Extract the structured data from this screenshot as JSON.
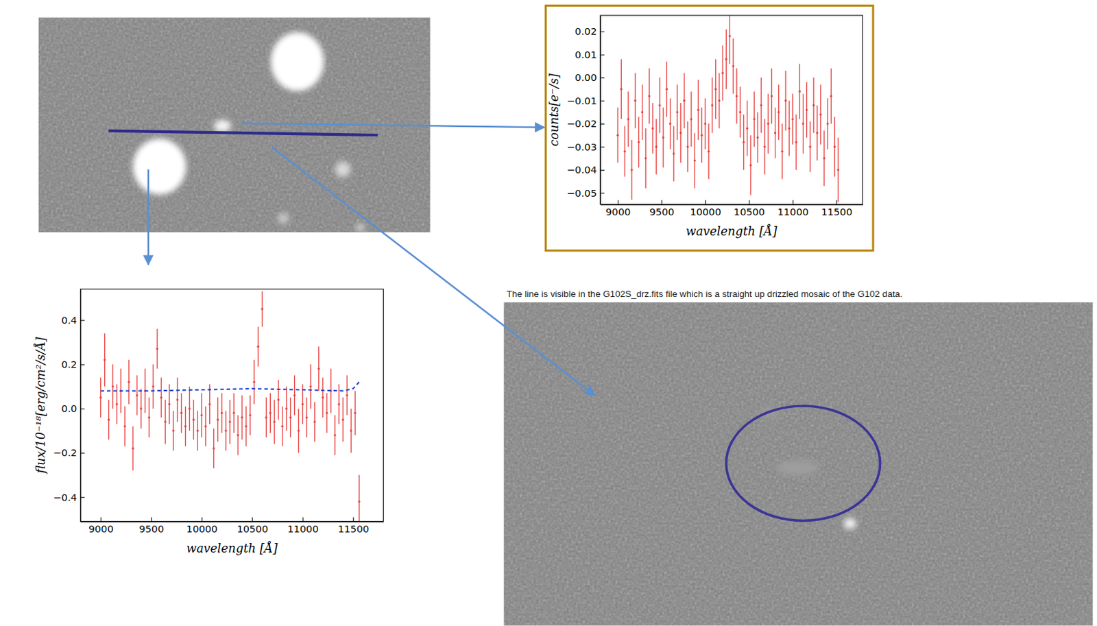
{
  "chart_data": [
    {
      "type": "scatter",
      "x_label": "wavelength [Å]",
      "y_label": "counts[e⁻/s]",
      "xlim": [
        8800,
        11800
      ],
      "ylim": [
        -0.055,
        0.027
      ],
      "xticks": [
        9000,
        9500,
        10000,
        10500,
        11000,
        11500
      ],
      "yticks": [
        0.02,
        0.01,
        {
          "value": 0,
          "label": "0.00"
        },
        {
          "value": -0.01,
          "label": "−0.01"
        },
        {
          "value": -0.02,
          "label": "−0.02"
        },
        {
          "value": -0.03,
          "label": "−0.03"
        },
        {
          "value": -0.04,
          "label": "−0.04"
        },
        {
          "value": -0.05,
          "label": "−0.05"
        }
      ],
      "grid": false,
      "series": [
        {
          "type": "scatter",
          "color": "#e8413f",
          "marker": "point",
          "x": [
            9000,
            9040,
            9080,
            9120,
            9160,
            9200,
            9240,
            9280,
            9320,
            9360,
            9400,
            9440,
            9480,
            9520,
            9560,
            9600,
            9640,
            9680,
            9720,
            9760,
            9800,
            9840,
            9880,
            9920,
            9960,
            10000,
            10040,
            10080,
            10120,
            10160,
            10200,
            10240,
            10280,
            10320,
            10360,
            10400,
            10440,
            10480,
            10520,
            10560,
            10600,
            10640,
            10680,
            10720,
            10760,
            10800,
            10840,
            10880,
            10920,
            10960,
            11000,
            11040,
            11080,
            11120,
            11160,
            11200,
            11240,
            11280,
            11320,
            11360,
            11400,
            11440,
            11480,
            11520
          ],
          "values": [
            -0.025,
            -0.005,
            -0.032,
            -0.018,
            -0.04,
            -0.01,
            -0.028,
            -0.015,
            -0.035,
            -0.008,
            -0.022,
            -0.03,
            -0.012,
            -0.026,
            -0.005,
            -0.02,
            -0.033,
            -0.015,
            -0.024,
            -0.01,
            -0.03,
            -0.018,
            -0.036,
            -0.014,
            -0.025,
            -0.02,
            -0.032,
            -0.012,
            -0.005,
            -0.01,
            0.002,
            0.008,
            0.018,
            0.005,
            -0.008,
            -0.015,
            -0.028,
            -0.022,
            -0.038,
            -0.018,
            -0.026,
            -0.012,
            -0.03,
            -0.02,
            -0.008,
            -0.024,
            -0.015,
            -0.032,
            -0.01,
            -0.022,
            -0.018,
            -0.028,
            -0.006,
            -0.02,
            -0.014,
            -0.03,
            -0.012,
            -0.024,
            -0.016,
            -0.035,
            -0.02,
            -0.008,
            -0.03,
            -0.04
          ],
          "errors": [
            0.012,
            0.013,
            0.011,
            0.012,
            0.013,
            0.012,
            0.011,
            0.012,
            0.013,
            0.012,
            0.011,
            0.012,
            0.012,
            0.013,
            0.012,
            0.011,
            0.012,
            0.012,
            0.013,
            0.012,
            0.011,
            0.012,
            0.012,
            0.013,
            0.012,
            0.011,
            0.012,
            0.012,
            0.013,
            0.012,
            0.012,
            0.013,
            0.012,
            0.012,
            0.012,
            0.011,
            0.012,
            0.012,
            0.013,
            0.012,
            0.011,
            0.012,
            0.012,
            0.013,
            0.012,
            0.011,
            0.012,
            0.012,
            0.013,
            0.012,
            0.011,
            0.012,
            0.012,
            0.013,
            0.012,
            0.011,
            0.012,
            0.012,
            0.013,
            0.012,
            0.011,
            0.012,
            0.013,
            0.014
          ]
        }
      ]
    },
    {
      "type": "scatter",
      "x_label": "wavelength [Å]",
      "y_label": "flux/10⁻¹⁸[erg/cm²/s/Å]",
      "xlim": [
        8800,
        11800
      ],
      "ylim": [
        -0.51,
        0.54
      ],
      "xticks": [
        9000,
        9500,
        10000,
        10500,
        11000,
        11500
      ],
      "yticks": [
        0.4,
        0.2,
        {
          "value": 0,
          "label": "0.0"
        },
        {
          "value": -0.2,
          "label": "−0.2"
        },
        {
          "value": -0.4,
          "label": "−0.4"
        }
      ],
      "grid": false,
      "series": [
        {
          "type": "scatter",
          "color": "#e8413f",
          "marker": "point",
          "x": [
            9000,
            9040,
            9080,
            9120,
            9160,
            9200,
            9240,
            9280,
            9320,
            9360,
            9400,
            9440,
            9480,
            9520,
            9560,
            9600,
            9640,
            9680,
            9720,
            9760,
            9800,
            9840,
            9880,
            9920,
            9960,
            10000,
            10040,
            10080,
            10120,
            10160,
            10200,
            10240,
            10280,
            10320,
            10360,
            10400,
            10440,
            10480,
            10520,
            10560,
            10600,
            10640,
            10680,
            10720,
            10760,
            10800,
            10840,
            10880,
            10920,
            10960,
            11000,
            11040,
            11080,
            11120,
            11160,
            11200,
            11240,
            11280,
            11320,
            11360,
            11400,
            11440,
            11480,
            11520,
            11560
          ],
          "values": [
            0.05,
            0.22,
            -0.05,
            0.1,
            0.02,
            0.08,
            -0.08,
            0.12,
            -0.18,
            0.06,
            0.0,
            0.08,
            -0.04,
            0.1,
            0.27,
            0.05,
            -0.06,
            0.02,
            -0.1,
            0.04,
            -0.02,
            -0.08,
            0.0,
            -0.05,
            -0.1,
            -0.03,
            -0.08,
            0.02,
            -0.18,
            -0.05,
            -0.02,
            -0.1,
            -0.06,
            -0.02,
            -0.12,
            -0.04,
            -0.08,
            -0.03,
            0.12,
            0.28,
            0.45,
            -0.04,
            -0.02,
            -0.06,
            0.04,
            -0.08,
            0.0,
            -0.04,
            0.06,
            -0.1,
            0.02,
            -0.04,
            0.1,
            -0.06,
            0.18,
            0.05,
            -0.02,
            0.08,
            -0.12,
            0.02,
            -0.05,
            0.06,
            -0.1,
            -0.02,
            -0.42
          ],
          "errors": [
            0.09,
            0.12,
            0.09,
            0.1,
            0.09,
            0.1,
            0.09,
            0.1,
            0.1,
            0.09,
            0.09,
            0.1,
            0.09,
            0.1,
            0.09,
            0.09,
            0.1,
            0.09,
            0.09,
            0.1,
            0.09,
            0.09,
            0.1,
            0.09,
            0.09,
            0.1,
            0.09,
            0.09,
            0.09,
            0.1,
            0.09,
            0.09,
            0.1,
            0.09,
            0.09,
            0.1,
            0.09,
            0.09,
            0.1,
            0.09,
            0.08,
            0.09,
            0.09,
            0.1,
            0.09,
            0.09,
            0.1,
            0.09,
            0.09,
            0.1,
            0.09,
            0.09,
            0.1,
            0.09,
            0.1,
            0.09,
            0.09,
            0.1,
            0.09,
            0.09,
            0.1,
            0.09,
            0.1,
            0.1,
            0.12
          ]
        },
        {
          "type": "line",
          "color": "#1f3fd1",
          "line_style": "dashed",
          "x": [
            9000,
            9500,
            10000,
            10500,
            11000,
            11400,
            11500,
            11560
          ],
          "values": [
            0.08,
            0.08,
            0.085,
            0.09,
            0.085,
            0.08,
            0.09,
            0.12
          ]
        }
      ]
    }
  ],
  "caption": "The line is visible in the G102S_drz.fits file which is a straight up drizzled mosaic of the G102 data."
}
